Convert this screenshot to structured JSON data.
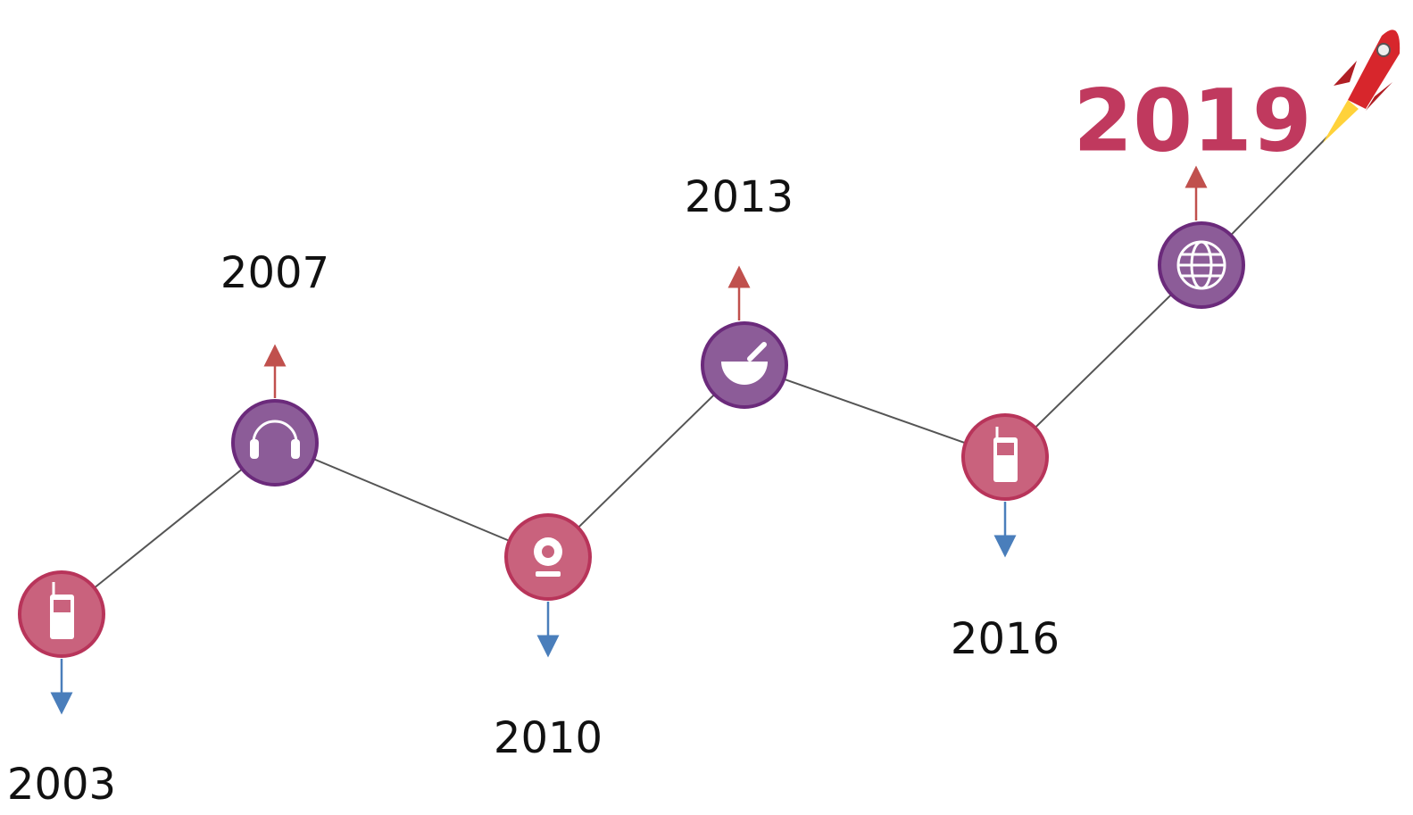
{
  "nodes": [
    {
      "label": "2003"
    },
    {
      "label": "2007"
    },
    {
      "label": "2010"
    },
    {
      "label": "2013"
    },
    {
      "label": "2016"
    },
    {
      "label": "2019"
    }
  ]
}
